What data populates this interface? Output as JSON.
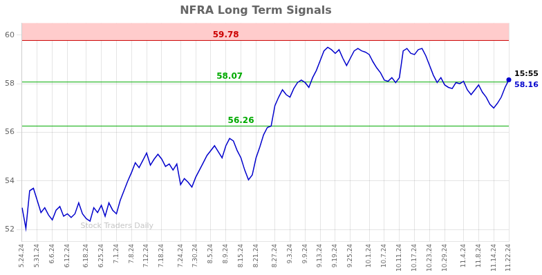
{
  "chart_data": {
    "type": "line",
    "title": "NFRA Long Term Signals",
    "categories": [
      "5.24.24",
      null,
      null,
      null,
      "5.31.24",
      null,
      null,
      null,
      "6.6.24",
      null,
      null,
      null,
      "6.12.24",
      null,
      null,
      null,
      null,
      "6.18.24",
      null,
      null,
      null,
      "6.25.24",
      null,
      null,
      null,
      "7.1.24",
      null,
      null,
      null,
      "7.8.24",
      null,
      null,
      null,
      "7.12.24",
      null,
      null,
      null,
      "7.18.24",
      null,
      null,
      null,
      null,
      "7.24.24",
      null,
      null,
      null,
      "7.30.24",
      null,
      null,
      null,
      "8.5.24",
      null,
      null,
      null,
      "8.9.24",
      null,
      null,
      null,
      "8.15.24",
      null,
      null,
      null,
      "8.21.24",
      null,
      null,
      null,
      null,
      "8.27.24",
      null,
      null,
      null,
      "9.3.24",
      null,
      null,
      null,
      "9.9.24",
      null,
      null,
      null,
      "9.13.24",
      null,
      null,
      null,
      "9.19.24",
      null,
      null,
      null,
      "9.25.24",
      null,
      null,
      null,
      null,
      "10.1.24",
      null,
      null,
      null,
      "10.7.24",
      null,
      null,
      null,
      "10.11.24",
      null,
      null,
      null,
      "10.17.24",
      null,
      null,
      null,
      "10.23.24",
      null,
      null,
      null,
      "10.29.24",
      null,
      null,
      null,
      null,
      "11.4.24",
      null,
      null,
      null,
      "11.8.24",
      null,
      null,
      null,
      "11.14.24",
      null,
      null,
      null,
      "11.22.24"
    ],
    "values": [
      52.9,
      52.05,
      53.6,
      53.7,
      53.2,
      52.7,
      52.9,
      52.6,
      52.4,
      52.8,
      52.95,
      52.55,
      52.65,
      52.5,
      52.65,
      53.1,
      52.65,
      52.45,
      52.35,
      52.9,
      52.7,
      53.0,
      52.55,
      53.1,
      52.8,
      52.65,
      53.2,
      53.6,
      54.0,
      54.35,
      54.75,
      54.55,
      54.85,
      55.15,
      54.65,
      54.9,
      55.1,
      54.9,
      54.6,
      54.7,
      54.45,
      54.7,
      53.85,
      54.1,
      53.95,
      53.75,
      54.15,
      54.45,
      54.75,
      55.05,
      55.25,
      55.45,
      55.2,
      54.95,
      55.45,
      55.75,
      55.65,
      55.25,
      54.95,
      54.45,
      54.05,
      54.25,
      54.95,
      55.4,
      55.9,
      56.2,
      56.26,
      57.1,
      57.45,
      57.75,
      57.55,
      57.45,
      57.8,
      58.05,
      58.15,
      58.05,
      57.85,
      58.25,
      58.55,
      58.95,
      59.35,
      59.5,
      59.4,
      59.25,
      59.4,
      59.05,
      58.75,
      59.05,
      59.35,
      59.45,
      59.35,
      59.3,
      59.2,
      58.9,
      58.65,
      58.45,
      58.15,
      58.1,
      58.25,
      58.05,
      58.25,
      59.35,
      59.45,
      59.25,
      59.2,
      59.4,
      59.45,
      59.15,
      58.75,
      58.35,
      58.05,
      58.25,
      57.95,
      57.85,
      57.8,
      58.05,
      58.0,
      58.1,
      57.75,
      57.55,
      57.75,
      57.95,
      57.65,
      57.45,
      57.15,
      57.0,
      57.2,
      57.45,
      57.85,
      58.16
    ],
    "color": "#0000cc",
    "ylim": [
      51.5,
      60.5
    ],
    "yticks": [
      52,
      54,
      56,
      58,
      60
    ],
    "grid": true,
    "annotations": [
      {
        "type": "band",
        "y": [
          59.78,
          60.5
        ],
        "color": "#ffcccc"
      },
      {
        "type": "hline",
        "y": 59.78,
        "text": "59.78",
        "color": "#cc0000"
      },
      {
        "type": "hline",
        "y": 58.07,
        "text": "58.07",
        "color": "#00aa00"
      },
      {
        "type": "hline",
        "y": 56.26,
        "text": "56.26",
        "color": "#00aa00"
      },
      {
        "type": "end_label",
        "texts": [
          "15:55",
          "58.16"
        ],
        "colors": [
          "#000000",
          "#0000cc"
        ]
      },
      {
        "type": "watermark",
        "text": "Stock Traders Daily"
      }
    ]
  }
}
